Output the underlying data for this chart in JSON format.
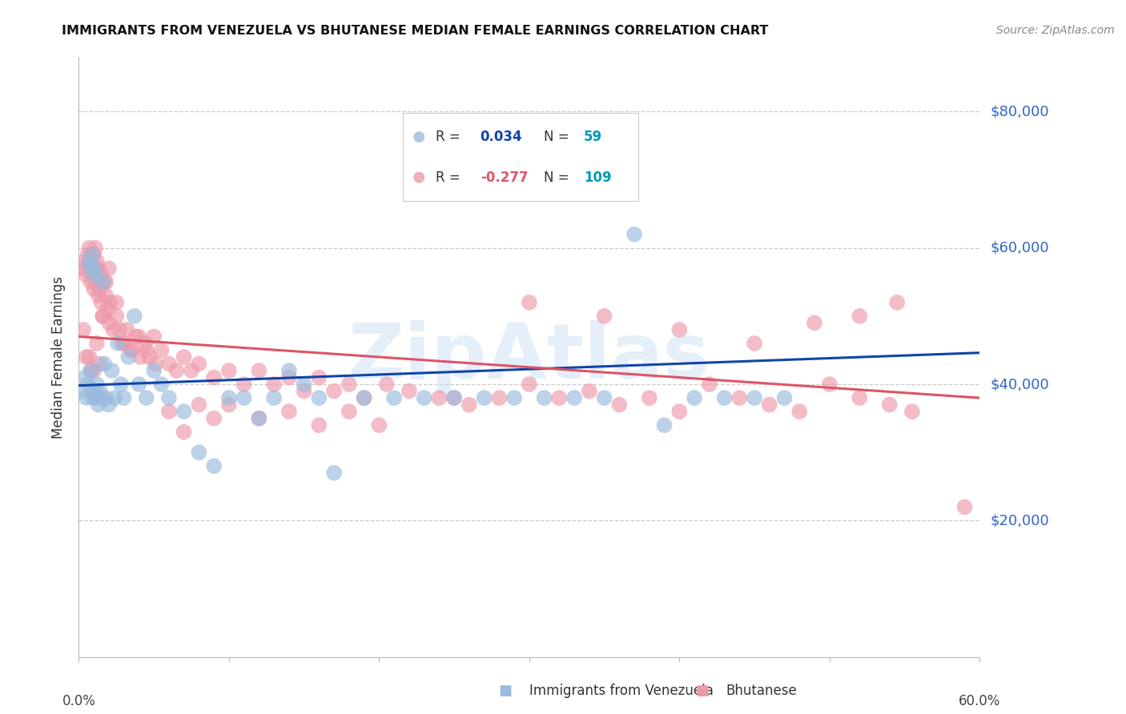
{
  "title": "IMMIGRANTS FROM VENEZUELA VS BHUTANESE MEDIAN FEMALE EARNINGS CORRELATION CHART",
  "source": "Source: ZipAtlas.com",
  "ylabel": "Median Female Earnings",
  "yticks": [
    0,
    20000,
    40000,
    60000,
    80000
  ],
  "ytick_labels": [
    "",
    "$20,000",
    "$40,000",
    "$60,000",
    "$80,000"
  ],
  "xlim": [
    0.0,
    0.6
  ],
  "ylim": [
    0,
    88000
  ],
  "watermark": "ZipAtlas",
  "watermark_color": "#aaccee",
  "title_color": "#111111",
  "axis_label_color": "#333333",
  "ytick_color": "#3366cc",
  "grid_color": "#cccccc",
  "background_color": "#ffffff",
  "scatter_blue_color": "#99bbdd",
  "scatter_pink_color": "#ee99aa",
  "line_blue_color": "#1144aa",
  "line_pink_color": "#dd5566",
  "venezuela_r": 0.034,
  "venezuela_n": 59,
  "bhutan_r": -0.277,
  "bhutan_n": 109,
  "venezuela_points_x": [
    0.003,
    0.004,
    0.005,
    0.006,
    0.007,
    0.008,
    0.008,
    0.009,
    0.009,
    0.01,
    0.01,
    0.011,
    0.011,
    0.012,
    0.013,
    0.014,
    0.015,
    0.016,
    0.017,
    0.018,
    0.02,
    0.022,
    0.024,
    0.026,
    0.028,
    0.03,
    0.033,
    0.037,
    0.04,
    0.045,
    0.05,
    0.055,
    0.06,
    0.07,
    0.08,
    0.09,
    0.1,
    0.11,
    0.12,
    0.13,
    0.14,
    0.15,
    0.16,
    0.17,
    0.19,
    0.21,
    0.23,
    0.25,
    0.27,
    0.29,
    0.31,
    0.33,
    0.35,
    0.37,
    0.39,
    0.41,
    0.43,
    0.45,
    0.47
  ],
  "venezuela_points_y": [
    39000,
    41000,
    38000,
    40000,
    58000,
    57000,
    42000,
    59000,
    38000,
    57000,
    39000,
    56000,
    38000,
    40000,
    37000,
    39000,
    38000,
    55000,
    43000,
    38000,
    37000,
    42000,
    38000,
    46000,
    40000,
    38000,
    44000,
    50000,
    40000,
    38000,
    42000,
    40000,
    38000,
    36000,
    30000,
    28000,
    38000,
    38000,
    35000,
    38000,
    42000,
    40000,
    38000,
    27000,
    38000,
    38000,
    38000,
    38000,
    38000,
    38000,
    38000,
    38000,
    38000,
    62000,
    34000,
    38000,
    38000,
    38000,
    38000
  ],
  "bhutan_points_x": [
    0.003,
    0.004,
    0.005,
    0.006,
    0.007,
    0.007,
    0.008,
    0.008,
    0.009,
    0.009,
    0.01,
    0.01,
    0.011,
    0.011,
    0.012,
    0.012,
    0.013,
    0.013,
    0.014,
    0.015,
    0.015,
    0.016,
    0.017,
    0.018,
    0.019,
    0.02,
    0.021,
    0.023,
    0.025,
    0.027,
    0.029,
    0.032,
    0.035,
    0.038,
    0.041,
    0.044,
    0.047,
    0.051,
    0.055,
    0.06,
    0.065,
    0.07,
    0.075,
    0.08,
    0.09,
    0.1,
    0.11,
    0.12,
    0.13,
    0.14,
    0.15,
    0.16,
    0.17,
    0.18,
    0.19,
    0.205,
    0.22,
    0.24,
    0.26,
    0.28,
    0.3,
    0.32,
    0.34,
    0.36,
    0.38,
    0.4,
    0.42,
    0.44,
    0.46,
    0.48,
    0.5,
    0.52,
    0.54,
    0.555,
    0.003,
    0.005,
    0.007,
    0.008,
    0.01,
    0.012,
    0.014,
    0.016,
    0.018,
    0.02,
    0.025,
    0.03,
    0.035,
    0.04,
    0.045,
    0.05,
    0.06,
    0.07,
    0.08,
    0.09,
    0.1,
    0.12,
    0.14,
    0.16,
    0.18,
    0.2,
    0.25,
    0.3,
    0.35,
    0.4,
    0.45,
    0.49,
    0.52,
    0.545,
    0.59
  ],
  "bhutan_points_y": [
    57000,
    58000,
    56000,
    59000,
    57000,
    60000,
    58000,
    55000,
    57000,
    56000,
    59000,
    54000,
    57000,
    60000,
    55000,
    58000,
    53000,
    57000,
    54000,
    52000,
    56000,
    50000,
    55000,
    53000,
    51000,
    49000,
    52000,
    48000,
    50000,
    48000,
    46000,
    48000,
    45000,
    47000,
    44000,
    46000,
    44000,
    43000,
    45000,
    43000,
    42000,
    44000,
    42000,
    43000,
    41000,
    42000,
    40000,
    42000,
    40000,
    41000,
    39000,
    41000,
    39000,
    40000,
    38000,
    40000,
    39000,
    38000,
    37000,
    38000,
    40000,
    38000,
    39000,
    37000,
    38000,
    36000,
    40000,
    38000,
    37000,
    36000,
    40000,
    38000,
    37000,
    36000,
    48000,
    44000,
    44000,
    42000,
    42000,
    46000,
    43000,
    50000,
    55000,
    57000,
    52000,
    46000,
    45000,
    47000,
    45000,
    47000,
    36000,
    33000,
    37000,
    35000,
    37000,
    35000,
    36000,
    34000,
    36000,
    34000,
    38000,
    52000,
    50000,
    48000,
    46000,
    49000,
    50000,
    52000,
    22000
  ]
}
